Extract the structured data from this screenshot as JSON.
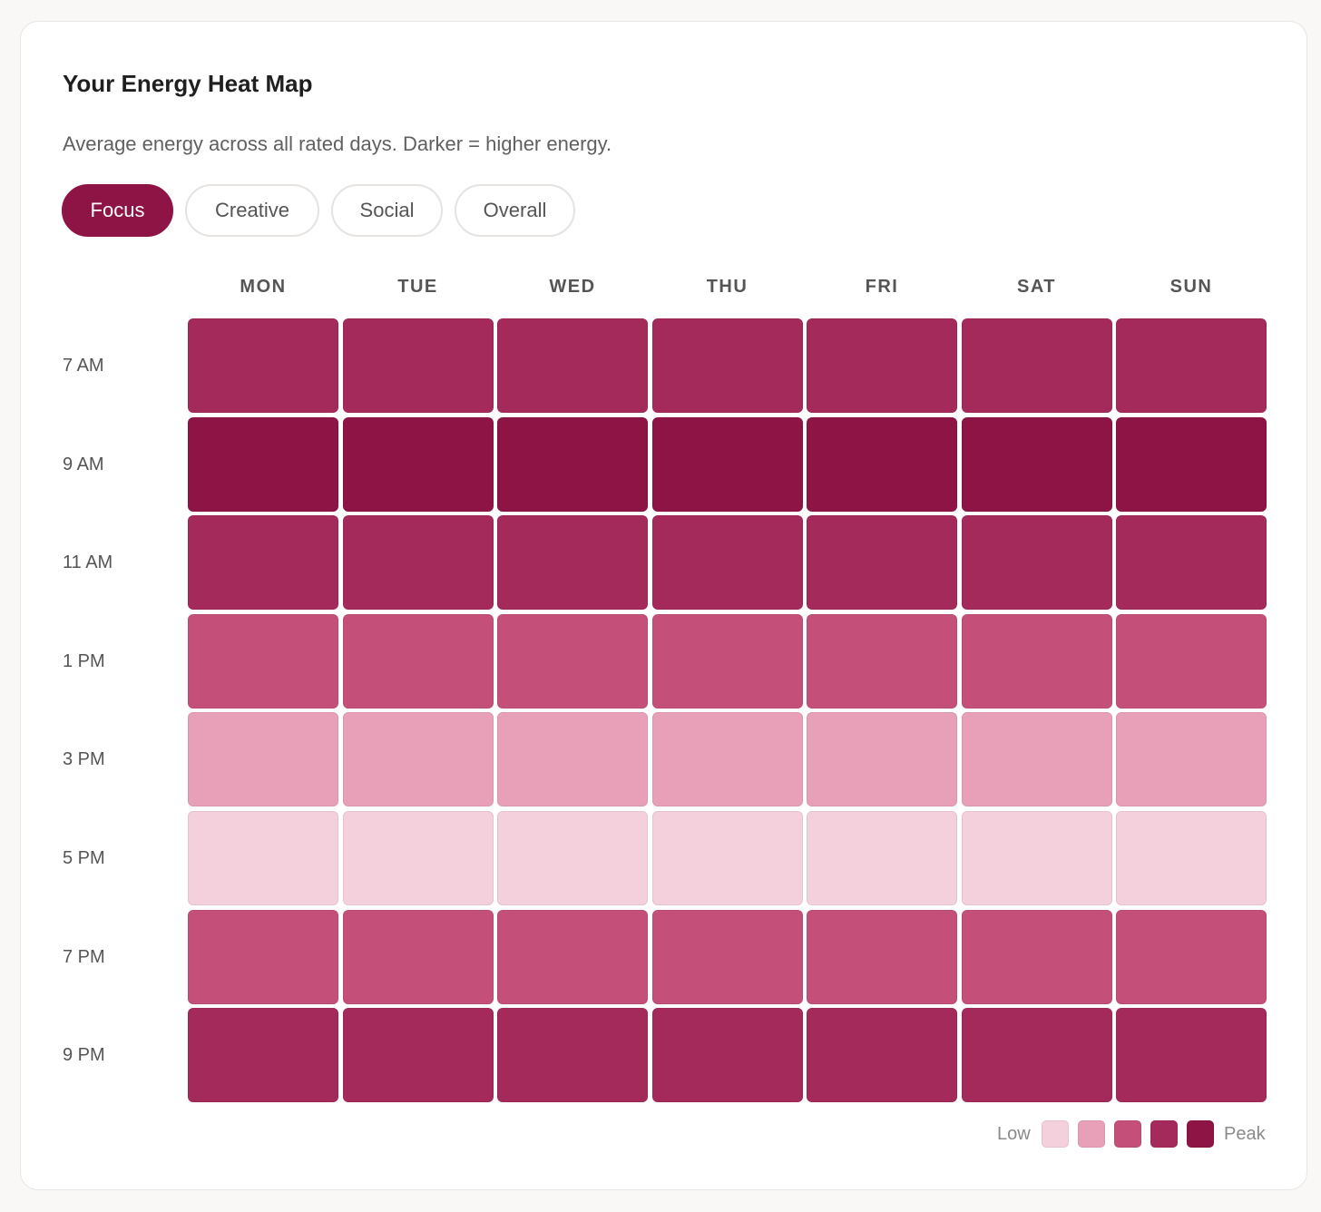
{
  "title": "Your Energy Heat Map",
  "subtitle": "Average energy across all rated days. Darker = higher energy.",
  "tabs": [
    {
      "label": "Focus",
      "active": true
    },
    {
      "label": "Creative",
      "active": false
    },
    {
      "label": "Social",
      "active": false
    },
    {
      "label": "Overall",
      "active": false
    }
  ],
  "accent_color": "#8e1446",
  "heatmap": {
    "days": [
      "MON",
      "TUE",
      "WED",
      "THU",
      "FRI",
      "SAT",
      "SUN"
    ],
    "times": [
      "7 AM",
      "9 AM",
      "11 AM",
      "1 PM",
      "3 PM",
      "5 PM",
      "7 PM",
      "9 PM"
    ],
    "level_colors": [
      "#f3d0dc",
      "#e8a0b8",
      "#c4507a",
      "#a52a5c",
      "#8e1446"
    ],
    "levels": [
      [
        3,
        3,
        3,
        3,
        3,
        3,
        3
      ],
      [
        4,
        4,
        4,
        4,
        4,
        4,
        4
      ],
      [
        3,
        3,
        3,
        3,
        3,
        3,
        3
      ],
      [
        2,
        2,
        2,
        2,
        2,
        2,
        2
      ],
      [
        1,
        1,
        1,
        1,
        1,
        1,
        1
      ],
      [
        0,
        0,
        0,
        0,
        0,
        0,
        0
      ],
      [
        2,
        2,
        2,
        2,
        2,
        2,
        2
      ],
      [
        3,
        3,
        3,
        3,
        3,
        3,
        3
      ]
    ]
  },
  "legend": {
    "low_label": "Low",
    "peak_label": "Peak"
  }
}
